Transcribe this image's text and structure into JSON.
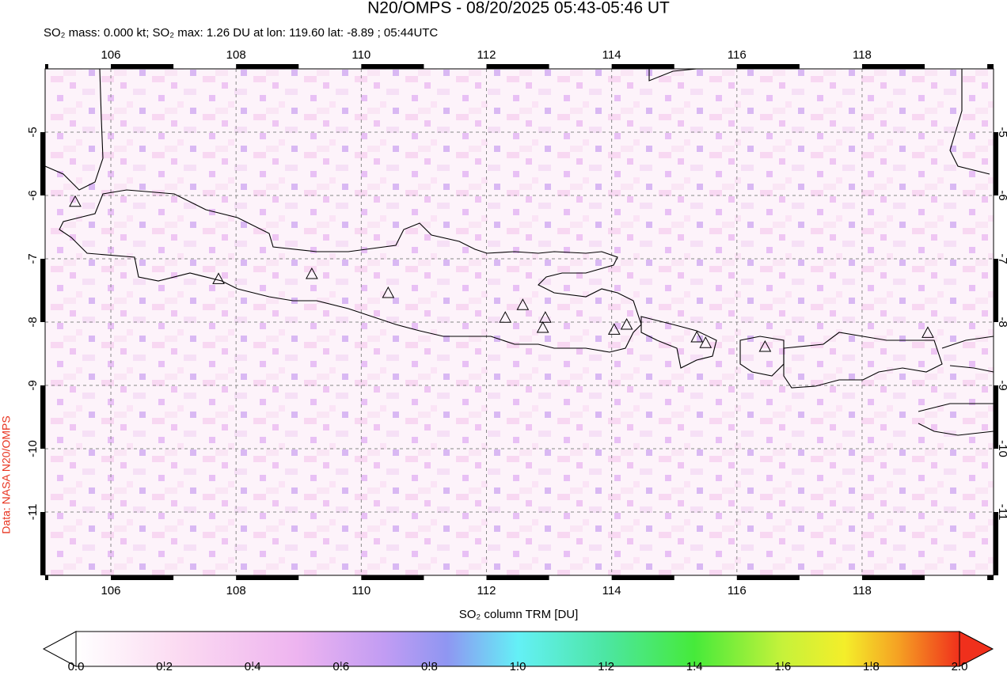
{
  "chart_data": {
    "type": "map",
    "title": "N20/OMPS - 08/20/2025 05:43-05:46 UT",
    "subtitle": "SO₂ mass: 0.000 kt; SO₂ max: 1.26 DU at lon: 119.60 lat: -8.89 ; 05:44UTC",
    "side_label": "Data: NASA N20/OMPS",
    "xlim": [
      104.95,
      120.1
    ],
    "ylim": [
      -12,
      -4
    ],
    "xticks": [
      106,
      108,
      110,
      112,
      114,
      116,
      118
    ],
    "yticks": [
      -5,
      -6,
      -7,
      -8,
      -9,
      -10,
      -11
    ],
    "grid": true,
    "volcanoes": {
      "lon": [
        105.43,
        107.72,
        109.21,
        110.43,
        112.3,
        112.58,
        112.94,
        112.9,
        114.04,
        114.24,
        115.36,
        115.5,
        116.45,
        119.05
      ],
      "lat": [
        -6.11,
        -7.33,
        -7.25,
        -7.55,
        -7.94,
        -7.74,
        -7.94,
        -8.1,
        -8.13,
        -8.05,
        -8.25,
        -8.34,
        -8.4,
        -8.18
      ]
    },
    "colorbar": {
      "label": "SO₂ column TRM [DU]",
      "lim": [
        0,
        2
      ],
      "ticks": [
        {
          "value": 0,
          "label": "0.0"
        },
        {
          "value": 0.2,
          "label": "0.2"
        },
        {
          "value": 0.4,
          "label": "0.4"
        },
        {
          "value": 0.6,
          "label": "0.6"
        },
        {
          "value": 0.8,
          "label": "0.8"
        },
        {
          "value": 1,
          "label": "1.0"
        },
        {
          "value": 1.2,
          "label": "1.2"
        },
        {
          "value": 1.4,
          "label": "1.4"
        },
        {
          "value": 1.6,
          "label": "1.6"
        },
        {
          "value": 1.8,
          "label": "1.8"
        },
        {
          "value": 2,
          "label": "2.0"
        }
      ]
    }
  }
}
